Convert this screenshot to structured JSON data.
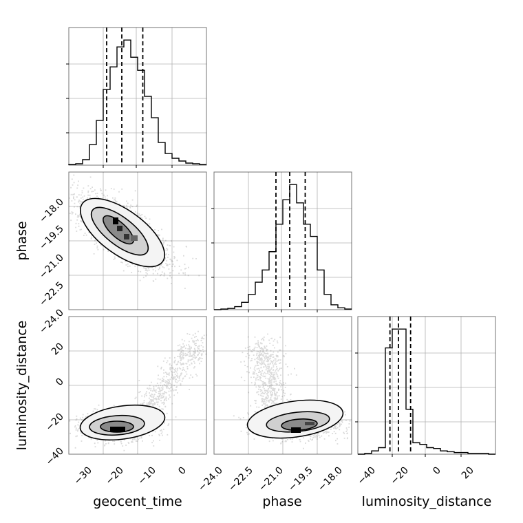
{
  "chart_data": {
    "type": "corner",
    "parameters": [
      "geocent_time",
      "phase",
      "luminosity_distance"
    ],
    "panels": [
      {
        "id": "hist-geocent_time",
        "type": "histogram",
        "parameter": "geocent_time",
        "bin_edges": [
          -35,
          -33,
          -31,
          -29,
          -27,
          -25,
          -23,
          -21,
          -19,
          -17,
          -15,
          -13,
          -11,
          -9,
          -7,
          -5,
          -3,
          -1,
          1,
          3,
          5
        ],
        "counts": [
          1,
          2,
          8,
          30,
          65,
          110,
          143,
          172,
          182,
          157,
          138,
          100,
          69,
          33,
          17,
          10,
          6,
          3,
          2,
          1
        ],
        "quantiles": [
          -24,
          -19.6,
          -13.5
        ]
      },
      {
        "id": "hist-phase",
        "type": "histogram",
        "parameter": "phase",
        "bin_edges": [
          -24.4,
          -24.0,
          -23.6,
          -23.2,
          -22.8,
          -22.4,
          -22.0,
          -21.6,
          -21.2,
          -20.8,
          -20.4,
          -20.0,
          -19.6,
          -19.2,
          -18.8,
          -18.4,
          -18.0,
          -17.6,
          -17.2,
          -16.8,
          -16.4
        ],
        "counts": [
          0,
          1,
          2,
          5,
          12,
          25,
          45,
          65,
          95,
          140,
          180,
          205,
          175,
          140,
          120,
          65,
          25,
          8,
          3,
          1
        ],
        "quantiles": [
          -20.8,
          -20.0,
          -19.1
        ]
      },
      {
        "id": "hist-luminosity_distance",
        "type": "histogram",
        "parameter": "luminosity_distance",
        "bin_edges": [
          -45,
          -42,
          -39,
          -36,
          -33,
          -30,
          -27,
          -24,
          -21,
          -18,
          -15,
          -12,
          -9,
          -6,
          -3,
          0,
          3,
          6,
          9,
          12,
          15
        ],
        "counts": [
          0,
          1,
          4,
          8,
          130,
          153,
          153,
          55,
          14,
          12,
          8,
          7,
          4,
          3,
          2,
          2,
          1,
          1,
          1,
          0
        ],
        "quantiles": [
          -31,
          -27.3,
          -22
        ]
      },
      {
        "id": "scatter-phase-vs-geocent_time",
        "type": "2d",
        "x": "geocent_time",
        "y": "phase",
        "xlim": [
          -35,
          8
        ],
        "ylim": [
          -24,
          -17
        ],
        "center": [
          -20,
          -19.6
        ],
        "sd": [
          5.5,
          0.75
        ],
        "correlation": -0.75
      },
      {
        "id": "scatter-luminosity_distance-vs-geocent_time",
        "type": "2d",
        "x": "geocent_time",
        "y": "luminosity_distance",
        "xlim": [
          -35,
          8
        ],
        "ylim": [
          -45,
          35
        ],
        "center": [
          -19,
          -28
        ],
        "tail": [
          [
            -10,
            -15
          ],
          [
            -5,
            0
          ],
          [
            0,
            15
          ],
          [
            4,
            25
          ]
        ]
      },
      {
        "id": "scatter-luminosity_distance-vs-phase",
        "type": "2d",
        "x": "phase",
        "y": "luminosity_distance",
        "xlim": [
          -24.4,
          -16.4
        ],
        "ylim": [
          -45,
          35
        ],
        "center": [
          -19.9,
          -28
        ],
        "tail": [
          [
            -20.5,
            -10
          ],
          [
            -20.8,
            5
          ],
          [
            -21.0,
            20
          ]
        ]
      }
    ],
    "ticks": {
      "geocent_time": [
        "−30",
        "−20",
        "−10",
        "0"
      ],
      "phase_y": [
        "−18.0",
        "−19.5",
        "−21.0",
        "−22.5",
        "−24.0"
      ],
      "phase_x": [
        "−24.0",
        "−22.5",
        "−21.0",
        "−19.5",
        "−18.0"
      ],
      "luminosity_distance_y": [
        "20",
        "0",
        "−20",
        "−40"
      ],
      "luminosity_distance_x": [
        "−40",
        "−20",
        "0",
        "20"
      ]
    },
    "xlabels": [
      "geocent_time",
      "phase",
      "luminosity_distance"
    ],
    "ylabels": [
      "phase",
      "luminosity_distance"
    ],
    "grid": true
  }
}
